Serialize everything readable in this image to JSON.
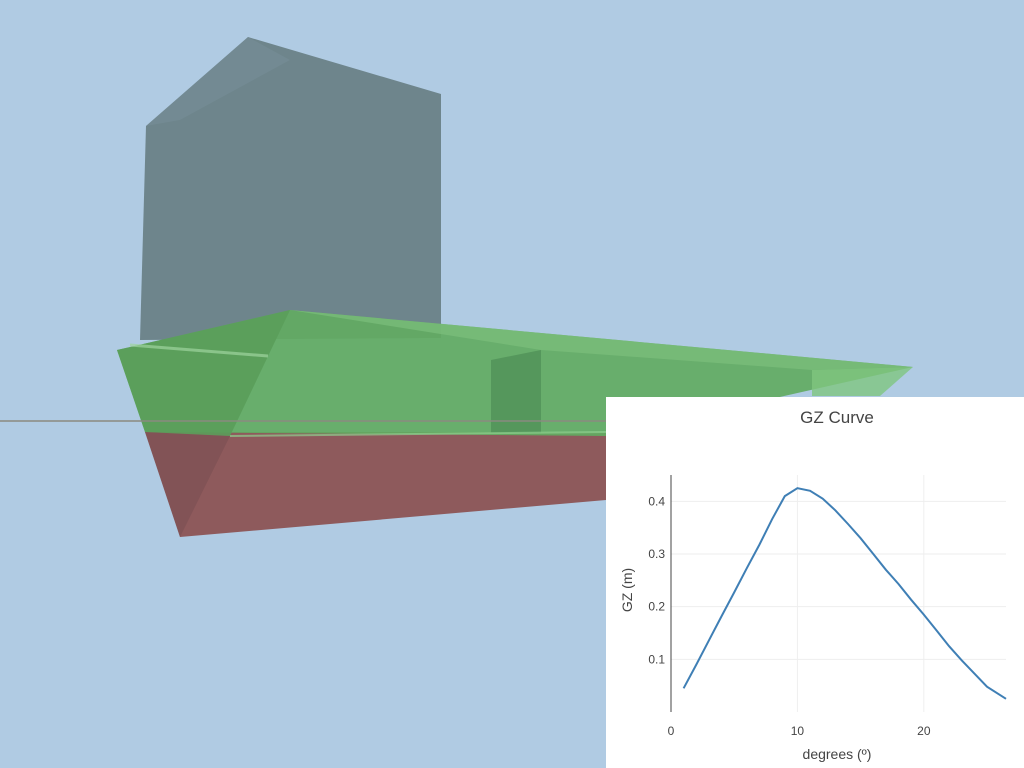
{
  "scene": {
    "background_color": "#b0cbe3",
    "waterline_color": "#8a8a80",
    "superstructure_color": "#6e858c",
    "topsides_color": "#62ab62",
    "hull_below_water_color": "#8e5a5c"
  },
  "chart_data": {
    "type": "line",
    "title": "GZ Curve",
    "xlabel": "degrees (º)",
    "ylabel": "GZ (m)",
    "xlim": [
      0,
      26.5
    ],
    "ylim": [
      0,
      0.45
    ],
    "xticks": [
      0,
      10,
      20
    ],
    "yticks": [
      0.1,
      0.2,
      0.3,
      0.4
    ],
    "grid": true,
    "line_color": "#3f7fb5",
    "series": [
      {
        "x": [
          1,
          2,
          3,
          4,
          5,
          6,
          7,
          8,
          9,
          10,
          11,
          12,
          13,
          14,
          15,
          16,
          17,
          18,
          19,
          20,
          21,
          22,
          23,
          24,
          25,
          26.5
        ],
        "values": [
          0.045,
          0.09,
          0.136,
          0.182,
          0.227,
          0.273,
          0.318,
          0.366,
          0.41,
          0.425,
          0.42,
          0.405,
          0.383,
          0.357,
          0.33,
          0.3,
          0.27,
          0.243,
          0.213,
          0.185,
          0.155,
          0.125,
          0.098,
          0.073,
          0.048,
          0.025
        ]
      }
    ]
  }
}
